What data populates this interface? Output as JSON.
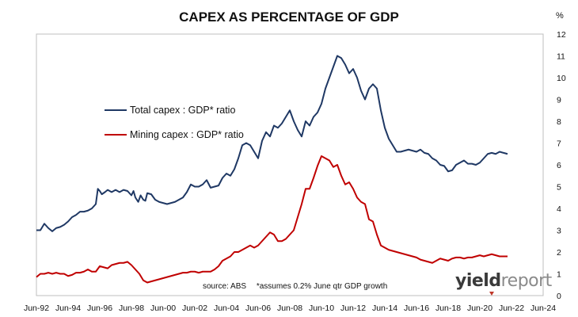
{
  "chart_data": {
    "type": "line",
    "title": "CAPEX AS PERCENTAGE OF GDP",
    "unit": "%",
    "xlabel": "",
    "ylabel": "",
    "ylim": [
      0,
      12
    ],
    "yticks": [
      "0",
      "1",
      "2",
      "3",
      "4",
      "5",
      "6",
      "7",
      "8",
      "9",
      "10",
      "11",
      "12"
    ],
    "xlim": [
      1992.42,
      2024.42
    ],
    "xticks": [
      {
        "label": "Jun-92",
        "year": 1992.42
      },
      {
        "label": "Jun-94",
        "year": 1994.42
      },
      {
        "label": "Jun-96",
        "year": 1996.42
      },
      {
        "label": "Jun-98",
        "year": 1998.42
      },
      {
        "label": "Jun-00",
        "year": 2000.42
      },
      {
        "label": "Jun-02",
        "year": 2002.42
      },
      {
        "label": "Jun-04",
        "year": 2004.42
      },
      {
        "label": "Jun-06",
        "year": 2006.42
      },
      {
        "label": "Jun-08",
        "year": 2008.42
      },
      {
        "label": "Jun-10",
        "year": 2010.42
      },
      {
        "label": "Jun-12",
        "year": 2012.42
      },
      {
        "label": "Jun-14",
        "year": 2014.42
      },
      {
        "label": "Jun-16",
        "year": 2016.42
      },
      {
        "label": "Jun-18",
        "year": 2018.42
      },
      {
        "label": "Jun-20",
        "year": 2020.42
      },
      {
        "label": "Jun-22",
        "year": 2022.42
      },
      {
        "label": "Jun-24",
        "year": 2024.42
      }
    ],
    "grid": false,
    "legend_position": "upper-left",
    "series": [
      {
        "name": "Total capex : GDP* ratio",
        "color": "#1f3864",
        "points": [
          [
            1992.42,
            3.0
          ],
          [
            1992.67,
            3.0
          ],
          [
            1992.92,
            3.3
          ],
          [
            1993.17,
            3.1
          ],
          [
            1993.42,
            2.95
          ],
          [
            1993.67,
            3.1
          ],
          [
            1993.92,
            3.15
          ],
          [
            1994.17,
            3.25
          ],
          [
            1994.42,
            3.4
          ],
          [
            1994.67,
            3.6
          ],
          [
            1994.92,
            3.7
          ],
          [
            1995.17,
            3.85
          ],
          [
            1995.42,
            3.85
          ],
          [
            1995.67,
            3.9
          ],
          [
            1995.92,
            4.0
          ],
          [
            1996.17,
            4.2
          ],
          [
            1996.3,
            4.9
          ],
          [
            1996.42,
            4.8
          ],
          [
            1996.55,
            4.65
          ],
          [
            1996.75,
            4.75
          ],
          [
            1996.92,
            4.85
          ],
          [
            1997.17,
            4.75
          ],
          [
            1997.42,
            4.85
          ],
          [
            1997.67,
            4.75
          ],
          [
            1997.92,
            4.85
          ],
          [
            1998.17,
            4.8
          ],
          [
            1998.42,
            4.6
          ],
          [
            1998.55,
            4.8
          ],
          [
            1998.67,
            4.5
          ],
          [
            1998.85,
            4.3
          ],
          [
            1999.0,
            4.6
          ],
          [
            1999.17,
            4.4
          ],
          [
            1999.3,
            4.35
          ],
          [
            1999.42,
            4.7
          ],
          [
            1999.67,
            4.65
          ],
          [
            1999.92,
            4.4
          ],
          [
            2000.17,
            4.3
          ],
          [
            2000.42,
            4.25
          ],
          [
            2000.67,
            4.2
          ],
          [
            2000.92,
            4.25
          ],
          [
            2001.17,
            4.3
          ],
          [
            2001.42,
            4.4
          ],
          [
            2001.67,
            4.5
          ],
          [
            2001.92,
            4.75
          ],
          [
            2002.17,
            5.1
          ],
          [
            2002.42,
            5.0
          ],
          [
            2002.67,
            5.0
          ],
          [
            2002.92,
            5.1
          ],
          [
            2003.17,
            5.3
          ],
          [
            2003.42,
            4.95
          ],
          [
            2003.67,
            5.0
          ],
          [
            2003.92,
            5.05
          ],
          [
            2004.17,
            5.4
          ],
          [
            2004.42,
            5.6
          ],
          [
            2004.67,
            5.5
          ],
          [
            2004.92,
            5.8
          ],
          [
            2005.17,
            6.3
          ],
          [
            2005.42,
            6.9
          ],
          [
            2005.67,
            7.0
          ],
          [
            2005.92,
            6.9
          ],
          [
            2006.17,
            6.6
          ],
          [
            2006.42,
            6.3
          ],
          [
            2006.67,
            7.1
          ],
          [
            2006.92,
            7.5
          ],
          [
            2007.17,
            7.3
          ],
          [
            2007.42,
            7.8
          ],
          [
            2007.67,
            7.7
          ],
          [
            2007.92,
            7.9
          ],
          [
            2008.17,
            8.2
          ],
          [
            2008.42,
            8.5
          ],
          [
            2008.67,
            8.0
          ],
          [
            2008.92,
            7.6
          ],
          [
            2009.17,
            7.3
          ],
          [
            2009.42,
            8.0
          ],
          [
            2009.67,
            7.8
          ],
          [
            2009.92,
            8.2
          ],
          [
            2010.17,
            8.4
          ],
          [
            2010.42,
            8.8
          ],
          [
            2010.67,
            9.5
          ],
          [
            2010.92,
            10.0
          ],
          [
            2011.17,
            10.5
          ],
          [
            2011.42,
            11.0
          ],
          [
            2011.67,
            10.9
          ],
          [
            2011.92,
            10.6
          ],
          [
            2012.17,
            10.2
          ],
          [
            2012.42,
            10.4
          ],
          [
            2012.67,
            10.0
          ],
          [
            2012.92,
            9.4
          ],
          [
            2013.17,
            9.0
          ],
          [
            2013.42,
            9.5
          ],
          [
            2013.67,
            9.7
          ],
          [
            2013.92,
            9.5
          ],
          [
            2014.17,
            8.5
          ],
          [
            2014.42,
            7.7
          ],
          [
            2014.67,
            7.2
          ],
          [
            2014.92,
            6.9
          ],
          [
            2015.17,
            6.6
          ],
          [
            2015.42,
            6.6
          ],
          [
            2015.67,
            6.65
          ],
          [
            2015.92,
            6.7
          ],
          [
            2016.17,
            6.65
          ],
          [
            2016.42,
            6.6
          ],
          [
            2016.67,
            6.7
          ],
          [
            2016.92,
            6.55
          ],
          [
            2017.17,
            6.5
          ],
          [
            2017.42,
            6.3
          ],
          [
            2017.67,
            6.2
          ],
          [
            2017.92,
            6.0
          ],
          [
            2018.17,
            5.95
          ],
          [
            2018.42,
            5.7
          ],
          [
            2018.67,
            5.75
          ],
          [
            2018.92,
            6.0
          ],
          [
            2019.17,
            6.1
          ],
          [
            2019.42,
            6.2
          ],
          [
            2019.67,
            6.05
          ],
          [
            2019.92,
            6.05
          ],
          [
            2020.17,
            6.0
          ],
          [
            2020.42,
            6.1
          ],
          [
            2020.67,
            6.3
          ],
          [
            2020.92,
            6.5
          ],
          [
            2021.17,
            6.55
          ],
          [
            2021.42,
            6.5
          ],
          [
            2021.67,
            6.6
          ],
          [
            2021.92,
            6.55
          ],
          [
            2022.17,
            6.5
          ]
        ]
      },
      {
        "name": "Mining capex : GDP* ratio",
        "color": "#c00000",
        "points": [
          [
            1992.42,
            0.85
          ],
          [
            1992.67,
            1.0
          ],
          [
            1992.92,
            1.0
          ],
          [
            1993.17,
            1.05
          ],
          [
            1993.42,
            1.0
          ],
          [
            1993.67,
            1.05
          ],
          [
            1993.92,
            1.0
          ],
          [
            1994.17,
            1.0
          ],
          [
            1994.42,
            0.9
          ],
          [
            1994.67,
            0.95
          ],
          [
            1994.92,
            1.05
          ],
          [
            1995.17,
            1.05
          ],
          [
            1995.42,
            1.1
          ],
          [
            1995.67,
            1.2
          ],
          [
            1995.92,
            1.1
          ],
          [
            1996.17,
            1.1
          ],
          [
            1996.42,
            1.35
          ],
          [
            1996.67,
            1.3
          ],
          [
            1996.92,
            1.25
          ],
          [
            1997.17,
            1.4
          ],
          [
            1997.42,
            1.45
          ],
          [
            1997.67,
            1.5
          ],
          [
            1997.92,
            1.5
          ],
          [
            1998.17,
            1.55
          ],
          [
            1998.42,
            1.4
          ],
          [
            1998.67,
            1.2
          ],
          [
            1998.92,
            1.0
          ],
          [
            1999.17,
            0.7
          ],
          [
            1999.42,
            0.6
          ],
          [
            1999.67,
            0.65
          ],
          [
            1999.92,
            0.7
          ],
          [
            2000.17,
            0.75
          ],
          [
            2000.42,
            0.8
          ],
          [
            2000.67,
            0.85
          ],
          [
            2000.92,
            0.9
          ],
          [
            2001.17,
            0.95
          ],
          [
            2001.42,
            1.0
          ],
          [
            2001.67,
            1.05
          ],
          [
            2001.92,
            1.05
          ],
          [
            2002.17,
            1.1
          ],
          [
            2002.42,
            1.1
          ],
          [
            2002.67,
            1.05
          ],
          [
            2002.92,
            1.1
          ],
          [
            2003.17,
            1.1
          ],
          [
            2003.42,
            1.1
          ],
          [
            2003.67,
            1.2
          ],
          [
            2003.92,
            1.35
          ],
          [
            2004.17,
            1.6
          ],
          [
            2004.42,
            1.7
          ],
          [
            2004.67,
            1.8
          ],
          [
            2004.92,
            2.0
          ],
          [
            2005.17,
            2.0
          ],
          [
            2005.42,
            2.1
          ],
          [
            2005.67,
            2.2
          ],
          [
            2005.92,
            2.3
          ],
          [
            2006.17,
            2.2
          ],
          [
            2006.42,
            2.3
          ],
          [
            2006.67,
            2.5
          ],
          [
            2006.92,
            2.7
          ],
          [
            2007.17,
            2.9
          ],
          [
            2007.42,
            2.8
          ],
          [
            2007.67,
            2.5
          ],
          [
            2007.92,
            2.5
          ],
          [
            2008.17,
            2.6
          ],
          [
            2008.42,
            2.8
          ],
          [
            2008.67,
            3.0
          ],
          [
            2008.92,
            3.6
          ],
          [
            2009.17,
            4.2
          ],
          [
            2009.42,
            4.9
          ],
          [
            2009.67,
            4.9
          ],
          [
            2009.92,
            5.4
          ],
          [
            2010.17,
            5.95
          ],
          [
            2010.42,
            6.4
          ],
          [
            2010.67,
            6.3
          ],
          [
            2010.92,
            6.2
          ],
          [
            2011.17,
            5.9
          ],
          [
            2011.42,
            6.0
          ],
          [
            2011.67,
            5.5
          ],
          [
            2011.92,
            5.1
          ],
          [
            2012.17,
            5.2
          ],
          [
            2012.42,
            4.9
          ],
          [
            2012.67,
            4.5
          ],
          [
            2012.92,
            4.3
          ],
          [
            2013.17,
            4.2
          ],
          [
            2013.42,
            3.5
          ],
          [
            2013.67,
            3.4
          ],
          [
            2013.92,
            2.8
          ],
          [
            2014.17,
            2.3
          ],
          [
            2014.42,
            2.2
          ],
          [
            2014.67,
            2.1
          ],
          [
            2014.92,
            2.05
          ],
          [
            2015.17,
            2.0
          ],
          [
            2015.42,
            1.95
          ],
          [
            2015.67,
            1.9
          ],
          [
            2015.92,
            1.85
          ],
          [
            2016.17,
            1.8
          ],
          [
            2016.42,
            1.75
          ],
          [
            2016.67,
            1.65
          ],
          [
            2016.92,
            1.6
          ],
          [
            2017.17,
            1.55
          ],
          [
            2017.42,
            1.5
          ],
          [
            2017.67,
            1.6
          ],
          [
            2017.92,
            1.7
          ],
          [
            2018.17,
            1.65
          ],
          [
            2018.42,
            1.6
          ],
          [
            2018.67,
            1.7
          ],
          [
            2018.92,
            1.75
          ],
          [
            2019.17,
            1.75
          ],
          [
            2019.42,
            1.7
          ],
          [
            2019.67,
            1.75
          ],
          [
            2019.92,
            1.75
          ],
          [
            2020.17,
            1.8
          ],
          [
            2020.42,
            1.85
          ],
          [
            2020.67,
            1.8
          ],
          [
            2020.92,
            1.85
          ],
          [
            2021.17,
            1.9
          ],
          [
            2021.42,
            1.85
          ],
          [
            2021.67,
            1.8
          ],
          [
            2021.92,
            1.8
          ],
          [
            2022.17,
            1.8
          ]
        ]
      }
    ]
  },
  "footnote": {
    "source": "source: ABS",
    "note": "*assumes 0.2% June qtr GDP growth"
  },
  "logo": {
    "part1": "yield",
    "part2": "report"
  }
}
